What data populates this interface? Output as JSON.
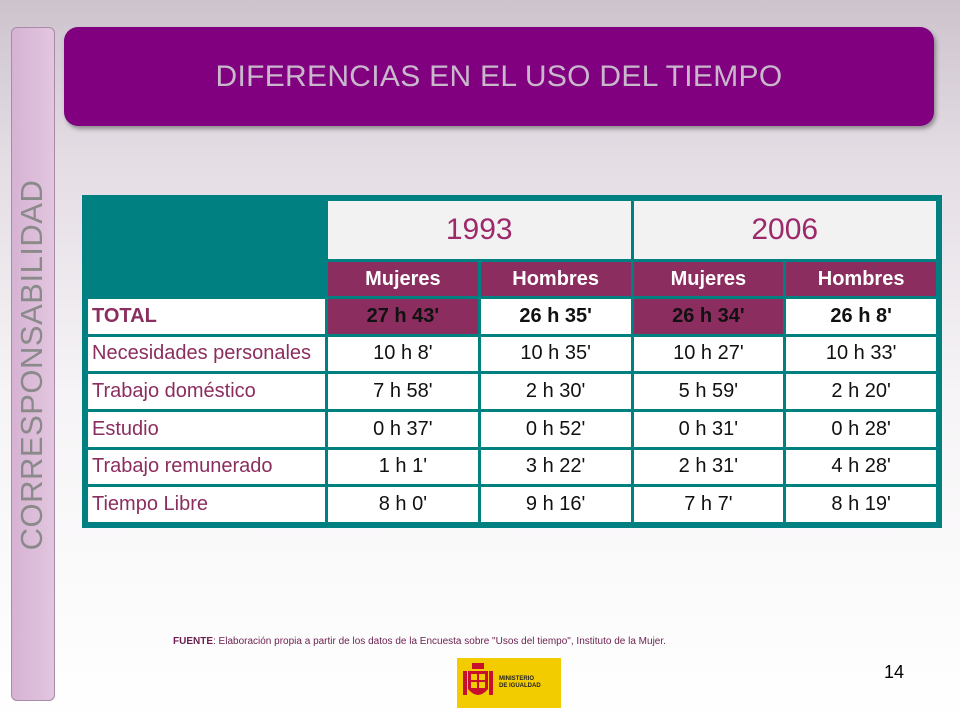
{
  "sidebar": {
    "label": "CORRESPONSABILIDAD"
  },
  "header": {
    "title": "DIFERENCIAS EN EL USO DEL TIEMPO"
  },
  "table": {
    "years": [
      "1993",
      "2006"
    ],
    "subheaders": [
      "Mujeres",
      "Hombres",
      "Mujeres",
      "Hombres"
    ],
    "rows": [
      {
        "label": "TOTAL",
        "values": [
          "27 h 43'",
          "26 h 35'",
          "26 h 34'",
          "26 h 8'"
        ]
      },
      {
        "label": "Necesidades personales",
        "values": [
          "10 h 8'",
          "10 h 35'",
          "10 h 27'",
          "10 h 33'"
        ]
      },
      {
        "label": "Trabajo doméstico",
        "values": [
          "7 h 58'",
          "2 h 30'",
          "5 h 59'",
          "2 h 20'"
        ]
      },
      {
        "label": "Estudio",
        "values": [
          "0 h 37'",
          "0 h 52'",
          "0 h 31'",
          "0 h 28'"
        ]
      },
      {
        "label": "Trabajo remunerado",
        "values": [
          "1 h 1'",
          "3 h 22'",
          "2 h 31'",
          "4 h 28'"
        ]
      },
      {
        "label": "Tiempo Libre",
        "values": [
          "8 h 0'",
          "9 h 16'",
          "7 h 7'",
          "8 h 19'"
        ]
      }
    ]
  },
  "footer": {
    "source_label": "FUENTE",
    "source_text": ": Elaboración propia a partir de los datos de la Encuesta sobre \"Usos del tiempo\", Instituto de la Mujer.",
    "page_number": "14",
    "logo_text": "MINISTERIO\nDE IGUALDAD"
  },
  "colors": {
    "title_bg": "#800080",
    "table_border": "#008080",
    "accent": "#8b2d5f"
  }
}
